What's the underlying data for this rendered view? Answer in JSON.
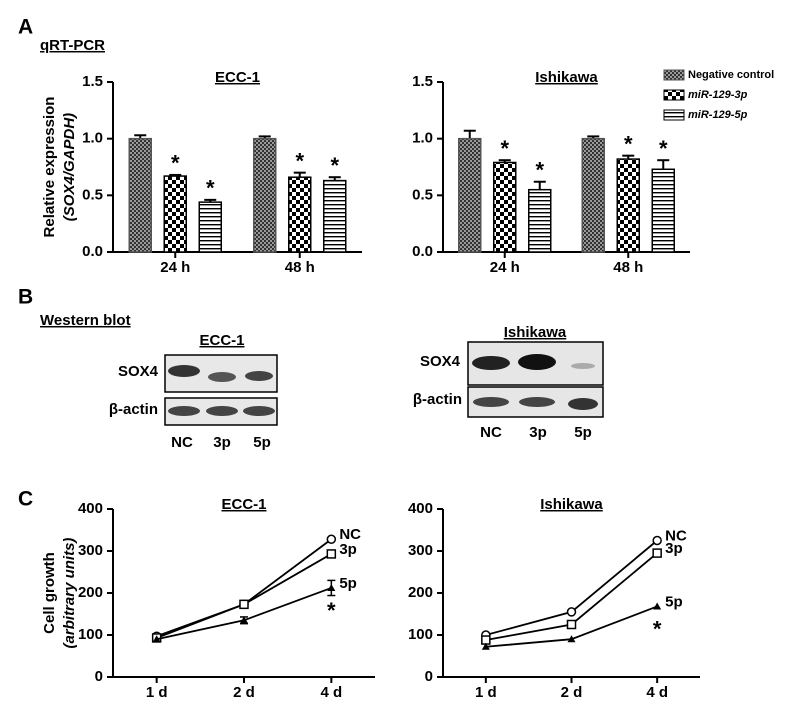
{
  "panels": {
    "A": {
      "letter": "A",
      "label": "qRT-PCR"
    },
    "B": {
      "letter": "B",
      "label": "Western blot"
    },
    "C": {
      "letter": "C"
    }
  },
  "blots": [
    {
      "title": "ECC-1",
      "rows": [
        "SOX4",
        "β-actin"
      ],
      "lanes": [
        "NC",
        "3p",
        "5p"
      ]
    },
    {
      "title": "Ishikawa",
      "rows": [
        "SOX4",
        "β-actin"
      ],
      "lanes": [
        "NC",
        "3p",
        "5p"
      ]
    }
  ],
  "chart_data": [
    {
      "type": "bar",
      "title": "ECC-1",
      "ylabel": [
        "Relative expression",
        "(SOX4/GAPDH)"
      ],
      "categories": [
        "24 h",
        "48 h"
      ],
      "ylim": [
        0,
        1.5
      ],
      "yticks": [
        {
          "value": 0,
          "label": "0.0"
        },
        0.5,
        {
          "value": 1,
          "label": "1.0"
        },
        1.5
      ],
      "series": [
        {
          "pattern": "fine-check",
          "color": "#555555",
          "values": [
            1.0,
            1.0
          ],
          "errors": [
            0.03,
            0.02
          ]
        },
        {
          "pattern": "check",
          "color": "#000000",
          "values": [
            0.67,
            0.66
          ],
          "errors": [
            0.01,
            0.04
          ],
          "significance": [
            "*",
            "*"
          ]
        },
        {
          "pattern": "hstripe",
          "color": "#000000",
          "values": [
            0.44,
            0.63
          ],
          "errors": [
            0.02,
            0.03
          ],
          "significance": [
            "*",
            "*"
          ]
        }
      ]
    },
    {
      "type": "bar",
      "title": "Ishikawa",
      "legend": "top-right",
      "categories": [
        "24 h",
        "48 h"
      ],
      "ylim": [
        0,
        1.5
      ],
      "yticks": [
        {
          "value": 0,
          "label": "0.0"
        },
        0.5,
        {
          "value": 1,
          "label": "1.0"
        },
        1.5
      ],
      "series": [
        {
          "name": "Negative control",
          "pattern": "fine-check",
          "color": "#555555",
          "values": [
            1.0,
            1.0
          ],
          "errors": [
            0.07,
            0.02
          ]
        },
        {
          "name": "miR-129-3p",
          "pattern": "check",
          "color": "#000000",
          "values": [
            0.79,
            0.82
          ],
          "errors": [
            0.02,
            0.03
          ],
          "significance": [
            "*",
            "*"
          ]
        },
        {
          "name": "miR-129-5p",
          "pattern": "hstripe",
          "color": "#000000",
          "values": [
            0.55,
            0.73
          ],
          "errors": [
            0.07,
            0.08
          ],
          "significance": [
            "*",
            "*"
          ]
        }
      ]
    },
    {
      "type": "line",
      "title": "ECC-1",
      "ylabel": [
        "Cell growth",
        "(arbitrary units)"
      ],
      "categories": [
        "1 d",
        "2 d",
        "4 d"
      ],
      "ylim": [
        0,
        400
      ],
      "yticks": [
        0,
        100,
        200,
        300,
        400
      ],
      "series": [
        {
          "name": "NC",
          "marker": "circle",
          "color": "#000000",
          "values": [
            97,
            173,
            328
          ]
        },
        {
          "name": "3p",
          "marker": "square",
          "color": "#000000",
          "values": [
            93,
            173,
            293
          ]
        },
        {
          "name": "5p",
          "marker": "triangle",
          "color": "#000000",
          "values": [
            90,
            135,
            212
          ],
          "errors": [
            null,
            8,
            18
          ],
          "significance": [
            null,
            null,
            "*"
          ]
        }
      ]
    },
    {
      "type": "line",
      "title": "Ishikawa",
      "categories": [
        "1 d",
        "2 d",
        "4 d"
      ],
      "ylim": [
        0,
        400
      ],
      "yticks": [
        0,
        100,
        200,
        300,
        400
      ],
      "series": [
        {
          "name": "NC",
          "marker": "circle",
          "color": "#000000",
          "values": [
            100,
            155,
            325
          ]
        },
        {
          "name": "3p",
          "marker": "square",
          "color": "#000000",
          "values": [
            88,
            125,
            295
          ]
        },
        {
          "name": "5p",
          "marker": "triangle",
          "color": "#000000",
          "values": [
            72,
            90,
            168
          ],
          "significance": [
            null,
            null,
            "*"
          ]
        }
      ]
    }
  ]
}
